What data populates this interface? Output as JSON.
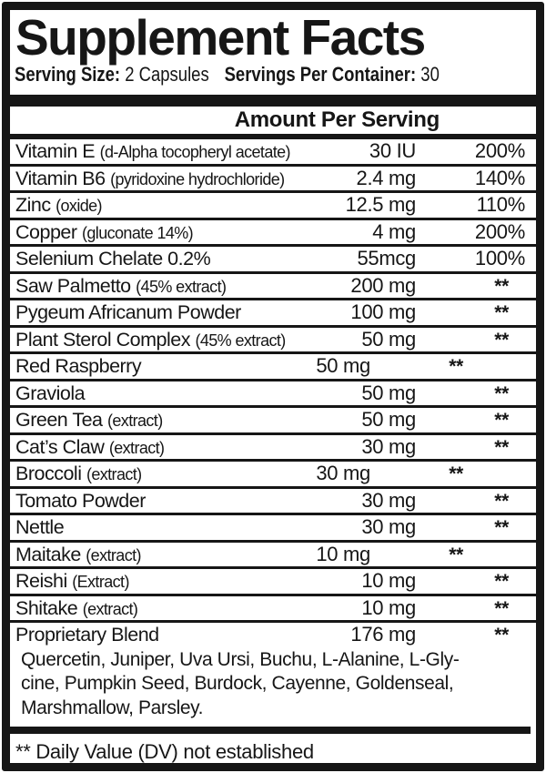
{
  "label": {
    "title": "Supplement Facts",
    "serving_size_label": "Serving Size:",
    "serving_size_value": "2 Capsules",
    "servings_per_container_label": "Servings Per Container:",
    "servings_per_container_value": "30",
    "amount_header": "Amount Per Serving",
    "rows": [
      {
        "name": "Vitamin E",
        "detail": "(d-Alpha tocopheryl acetate)",
        "amount": "30 IU",
        "dv": "200%",
        "shift": false
      },
      {
        "name": "Vitamin B6",
        "detail": "(pyridoxine hydrochloride)",
        "amount": "2.4 mg",
        "dv": "140%",
        "shift": false
      },
      {
        "name": "Zinc",
        "detail": "(oxide)",
        "amount": "12.5 mg",
        "dv": "110%",
        "shift": false
      },
      {
        "name": "Copper",
        "detail": "(gluconate 14%)",
        "amount": "4 mg",
        "dv": "200%",
        "shift": false
      },
      {
        "name": "Selenium Chelate 0.2%",
        "detail": "",
        "amount": "55mcg",
        "dv": "100%",
        "shift": false
      },
      {
        "name": "Saw Palmetto",
        "detail": "(45% extract)",
        "amount": "200 mg",
        "dv": "**",
        "shift": false
      },
      {
        "name": "Pygeum Africanum Powder",
        "detail": "",
        "amount": "100 mg",
        "dv": "**",
        "shift": false
      },
      {
        "name": "Plant Sterol Complex",
        "detail": "(45% extract)",
        "amount": "50 mg",
        "dv": "**",
        "shift": false
      },
      {
        "name": "Red Raspberry",
        "detail": "",
        "amount": "50 mg",
        "dv": "**",
        "shift": true
      },
      {
        "name": "Graviola",
        "detail": "",
        "amount": "50 mg",
        "dv": "**",
        "shift": false
      },
      {
        "name": "Green Tea",
        "detail": "(extract)",
        "amount": "50 mg",
        "dv": "**",
        "shift": false
      },
      {
        "name": "Cat’s Claw",
        "detail": "(extract)",
        "amount": "30 mg",
        "dv": "**",
        "shift": false
      },
      {
        "name": "Broccoli",
        "detail": "(extract)",
        "amount": "30 mg",
        "dv": "**",
        "shift": true
      },
      {
        "name": "Tomato Powder",
        "detail": "",
        "amount": "30 mg",
        "dv": "**",
        "shift": false
      },
      {
        "name": "Nettle",
        "detail": "",
        "amount": "30 mg",
        "dv": "**",
        "shift": false
      },
      {
        "name": "Maitake",
        "detail": "(extract)",
        "amount": "10 mg",
        "dv": "**",
        "shift": true
      },
      {
        "name": "Reishi",
        "detail": "(Extract)",
        "amount": "10 mg",
        "dv": "**",
        "shift": false
      },
      {
        "name": "Shitake",
        "detail": "(extract)",
        "amount": "10 mg",
        "dv": "**",
        "shift": false
      },
      {
        "name": "Proprietary Blend",
        "detail": "",
        "amount": "176 mg",
        "dv": "**",
        "shift": false
      }
    ],
    "blend_lines": [
      "Quercetin, Juniper, Uva Ursi, Buchu, L-Alanine, L-Gly-",
      "cine, Pumpkin Seed, Burdock, Cayenne, Goldenseal,",
      "Marshmallow, Parsley."
    ],
    "footnote": "** Daily Value (DV) not established",
    "colors": {
      "ink": "#161616",
      "background": "#ffffff"
    }
  }
}
